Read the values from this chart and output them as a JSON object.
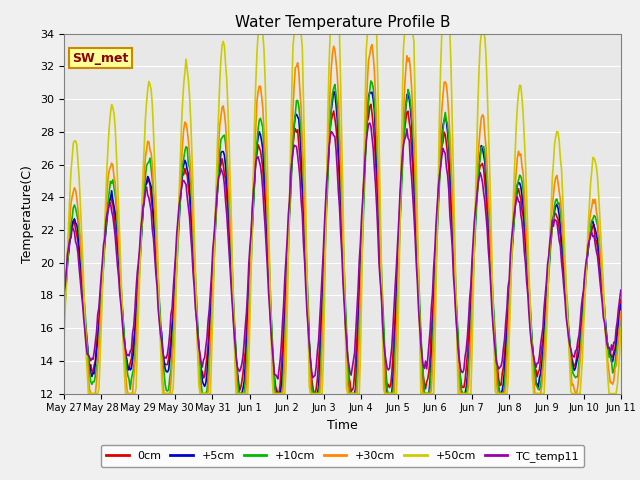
{
  "title": "Water Temperature Profile B",
  "xlabel": "Time",
  "ylabel": "Temperature(C)",
  "ylim": [
    12,
    34
  ],
  "yticks": [
    12,
    14,
    16,
    18,
    20,
    22,
    24,
    26,
    28,
    30,
    32,
    34
  ],
  "background_color": "#f0f0f0",
  "plot_bg_color": "#e8e8e8",
  "legend_label": "SW_met",
  "legend_bg": "#ffff99",
  "legend_border": "#cc8800",
  "series_order": [
    "0cm",
    "+5cm",
    "+10cm",
    "+30cm",
    "+50cm",
    "TC_temp11"
  ],
  "series": {
    "0cm": {
      "color": "#dd0000",
      "lw": 1.2
    },
    "+5cm": {
      "color": "#0000cc",
      "lw": 1.2
    },
    "+10cm": {
      "color": "#00bb00",
      "lw": 1.2
    },
    "+30cm": {
      "color": "#ff8800",
      "lw": 1.2
    },
    "+50cm": {
      "color": "#cccc00",
      "lw": 1.2
    },
    "TC_temp11": {
      "color": "#9900aa",
      "lw": 1.2
    }
  },
  "xtick_labels": [
    "May 27",
    "May 28",
    "May 29",
    "May 30",
    "May 31",
    "Jun 1",
    "Jun 2",
    "Jun 3",
    "Jun 4",
    "Jun 5",
    "Jun 6",
    "Jun 7",
    "Jun 8",
    "Jun 9",
    "Jun 10",
    "Jun 11"
  ],
  "num_points": 480,
  "start_day": 0.0,
  "end_day": 15.0,
  "figsize": [
    6.4,
    4.8
  ],
  "dpi": 100
}
